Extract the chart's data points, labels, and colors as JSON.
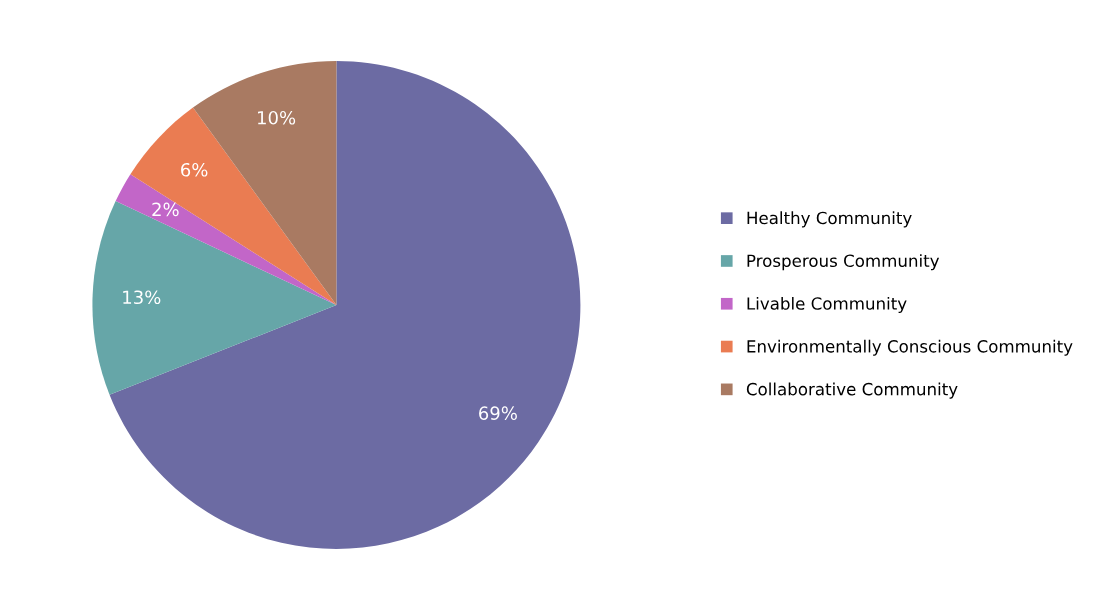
{
  "chart_data": {
    "type": "pie",
    "categories": [
      "Healthy Community",
      "Prosperous Community",
      "Livable Community",
      "Environmentally Conscious Community",
      "Collaborative Community"
    ],
    "values": [
      69,
      13,
      2,
      6,
      10
    ],
    "value_labels": [
      "69%",
      "13%",
      "2%",
      "6%",
      "10%"
    ],
    "colors": [
      "#6c6ba3",
      "#66a6a8",
      "#c266c8",
      "#ea7c52",
      "#a97a62"
    ],
    "legend": "right"
  }
}
